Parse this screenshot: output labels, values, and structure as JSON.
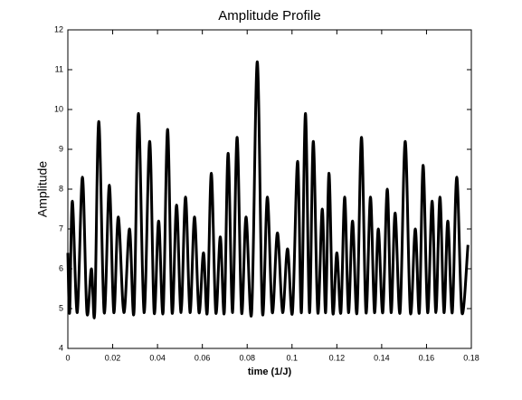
{
  "chart_data": {
    "type": "line",
    "title": "Amplitude Profile",
    "x_label": "time  (1/J)",
    "y_label": "Amplitude",
    "x": [
      0,
      0.0008,
      0.002,
      0.0042,
      0.0065,
      0.0085,
      0.0105,
      0.012,
      0.0138,
      0.0162,
      0.0185,
      0.0205,
      0.0225,
      0.025,
      0.0275,
      0.0295,
      0.0315,
      0.034,
      0.0365,
      0.0385,
      0.0405,
      0.0425,
      0.0445,
      0.0465,
      0.0485,
      0.0505,
      0.0525,
      0.0545,
      0.0565,
      0.0585,
      0.0605,
      0.0622,
      0.064,
      0.066,
      0.068,
      0.0698,
      0.0715,
      0.0735,
      0.0755,
      0.0775,
      0.0795,
      0.082,
      0.0845,
      0.0868,
      0.089,
      0.0912,
      0.0935,
      0.0958,
      0.098,
      0.1002,
      0.1025,
      0.1042,
      0.106,
      0.1078,
      0.1095,
      0.1115,
      0.1135,
      0.115,
      0.1165,
      0.1182,
      0.12,
      0.1218,
      0.1235,
      0.1252,
      0.127,
      0.129,
      0.131,
      0.133,
      0.135,
      0.1368,
      0.1385,
      0.1405,
      0.1425,
      0.1442,
      0.146,
      0.1482,
      0.1505,
      0.1528,
      0.155,
      0.1568,
      0.1585,
      0.1605,
      0.1625,
      0.1642,
      0.166,
      0.1678,
      0.1695,
      0.1715,
      0.1735,
      0.1758,
      0.1785
    ],
    "values": [
      6.4,
      4.9,
      7.7,
      4.9,
      8.3,
      4.9,
      6.0,
      4.9,
      9.7,
      4.9,
      8.1,
      4.9,
      7.3,
      4.9,
      7.0,
      4.9,
      9.9,
      4.9,
      9.2,
      4.9,
      7.2,
      4.9,
      9.5,
      4.9,
      7.6,
      4.9,
      7.8,
      4.9,
      7.3,
      4.9,
      6.4,
      4.9,
      8.4,
      4.9,
      6.8,
      4.9,
      8.9,
      4.9,
      9.3,
      4.9,
      7.3,
      4.9,
      11.2,
      4.9,
      7.8,
      4.9,
      6.9,
      4.9,
      6.5,
      4.9,
      8.7,
      4.9,
      9.9,
      4.9,
      9.2,
      4.9,
      7.5,
      4.9,
      8.4,
      4.9,
      6.4,
      4.9,
      7.8,
      4.9,
      7.2,
      4.9,
      9.3,
      4.9,
      7.8,
      4.9,
      7.0,
      4.9,
      8.0,
      4.9,
      7.4,
      4.9,
      9.2,
      4.9,
      7.0,
      4.9,
      8.6,
      4.9,
      7.7,
      4.9,
      7.8,
      4.9,
      7.2,
      4.9,
      8.3,
      4.9,
      6.6
    ],
    "color": "#000000",
    "xlim": [
      0,
      0.18
    ],
    "xticks": [
      0,
      0.02,
      0.04,
      0.06,
      0.08,
      0.1,
      0.12,
      0.14,
      0.16,
      0.18
    ],
    "ylim": [
      4,
      12
    ],
    "yticks": [
      4,
      5,
      6,
      7,
      8,
      9,
      10,
      11,
      12
    ]
  }
}
